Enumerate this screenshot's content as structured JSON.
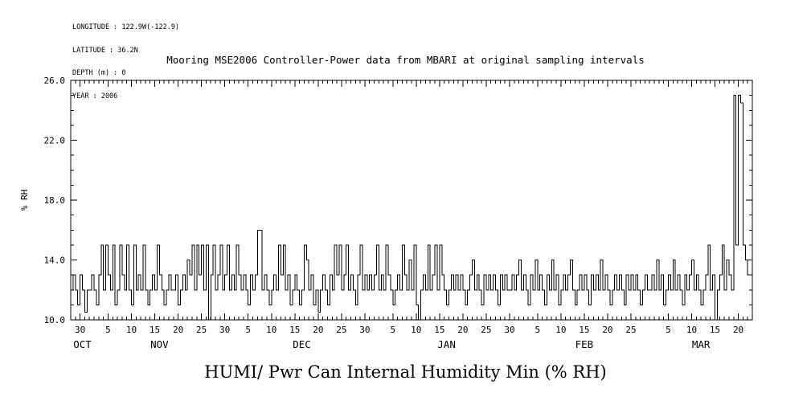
{
  "meta": {
    "lines": [
      "LONGITUDE : 122.9W(-122.9)",
      "LATITUDE : 36.2N",
      "DEPTH (m) : 0",
      "YEAR : 2006"
    ]
  },
  "chart_data": {
    "type": "line",
    "line_style": "step",
    "title": "Mooring MSE2006 Controller-Power data from MBARI at original sampling intervals",
    "bottom_label": "HUMI/ Pwr Can Internal Humidity Min (% RH)",
    "ylabel": "% RH",
    "ylim": [
      10.0,
      26.0
    ],
    "y_major_ticks": [
      10.0,
      14.0,
      18.0,
      22.0,
      26.0
    ],
    "y_tick_labels": [
      "10.0",
      "14.0",
      "18.0",
      "22.0",
      "26.0"
    ],
    "y_minor_step": 1.0,
    "grid": false,
    "x_axis": {
      "end_day": 146,
      "minor_tick_every_days": 1,
      "major_ticks": [
        {
          "day": 2,
          "label": "30"
        },
        {
          "day": 8,
          "label": "5"
        },
        {
          "day": 13,
          "label": "10"
        },
        {
          "day": 18,
          "label": "15"
        },
        {
          "day": 23,
          "label": "20"
        },
        {
          "day": 28,
          "label": "25"
        },
        {
          "day": 33,
          "label": "30"
        },
        {
          "day": 38,
          "label": "5"
        },
        {
          "day": 43,
          "label": "10"
        },
        {
          "day": 48,
          "label": "15"
        },
        {
          "day": 53,
          "label": "20"
        },
        {
          "day": 58,
          "label": "25"
        },
        {
          "day": 63,
          "label": "30"
        },
        {
          "day": 69,
          "label": "5"
        },
        {
          "day": 74,
          "label": "10"
        },
        {
          "day": 79,
          "label": "15"
        },
        {
          "day": 84,
          "label": "20"
        },
        {
          "day": 89,
          "label": "25"
        },
        {
          "day": 94,
          "label": "30"
        },
        {
          "day": 100,
          "label": "5"
        },
        {
          "day": 105,
          "label": "10"
        },
        {
          "day": 110,
          "label": "15"
        },
        {
          "day": 115,
          "label": "20"
        },
        {
          "day": 120,
          "label": "25"
        },
        {
          "day": 128,
          "label": "5"
        },
        {
          "day": 133,
          "label": "10"
        },
        {
          "day": 138,
          "label": "15"
        },
        {
          "day": 143,
          "label": "20"
        }
      ],
      "month_labels": [
        {
          "day": 2.5,
          "label": "OCT"
        },
        {
          "day": 19,
          "label": "NOV"
        },
        {
          "day": 49.5,
          "label": "DEC"
        },
        {
          "day": 80.5,
          "label": "JAN"
        },
        {
          "day": 110,
          "label": "FEB"
        },
        {
          "day": 135,
          "label": "MAR"
        }
      ]
    },
    "samples_per_day": 2,
    "values": [
      12,
      13,
      12,
      11,
      13,
      12,
      10.5,
      12,
      12,
      13,
      12,
      11,
      13,
      15,
      12,
      15,
      13,
      12,
      15,
      11,
      12,
      15,
      13,
      12,
      15,
      12,
      11,
      15,
      12,
      13,
      12,
      15,
      12,
      11,
      12,
      13,
      12,
      15,
      13,
      12,
      11,
      12,
      13,
      12,
      12,
      13,
      11,
      12,
      13,
      12,
      14,
      13,
      15,
      12,
      15,
      13,
      15,
      12,
      15,
      10,
      13,
      15,
      12,
      13,
      15,
      12,
      13,
      15,
      12,
      13,
      12,
      15,
      13,
      12,
      13,
      12,
      11,
      13,
      12,
      13,
      16,
      16,
      12,
      13,
      12,
      11,
      12,
      13,
      12,
      15,
      13,
      15,
      12,
      13,
      11,
      12,
      13,
      12,
      11,
      12,
      15,
      14,
      12,
      13,
      11,
      12,
      10.5,
      12,
      13,
      12,
      11,
      13,
      12,
      15,
      13,
      15,
      12,
      13,
      15,
      12,
      13,
      12,
      11,
      13,
      15,
      12,
      13,
      12,
      13,
      12,
      13,
      15,
      12,
      13,
      12,
      15,
      13,
      12,
      11,
      12,
      13,
      12,
      15,
      13,
      12,
      14,
      12,
      15,
      11,
      10,
      12,
      13,
      12,
      15,
      12,
      13,
      15,
      12,
      15,
      13,
      12,
      11,
      12,
      13,
      12,
      13,
      12,
      13,
      12,
      11,
      12,
      13,
      14,
      12,
      13,
      12,
      11,
      13,
      12,
      13,
      12,
      13,
      12,
      11,
      13,
      12,
      13,
      12,
      12,
      13,
      12,
      13,
      14,
      12,
      13,
      12,
      11,
      13,
      12,
      14,
      12,
      13,
      12,
      11,
      13,
      12,
      14,
      12,
      13,
      11,
      12,
      13,
      12,
      13,
      14,
      12,
      11,
      12,
      13,
      12,
      13,
      12,
      11,
      13,
      12,
      13,
      12,
      14,
      12,
      13,
      12,
      11,
      12,
      13,
      12,
      13,
      12,
      11,
      13,
      12,
      13,
      12,
      13,
      12,
      11,
      12,
      13,
      12,
      12,
      13,
      12,
      14,
      12,
      13,
      11,
      12,
      13,
      12,
      14,
      12,
      13,
      12,
      11,
      13,
      12,
      13,
      14,
      12,
      13,
      12,
      11,
      12,
      13,
      15,
      12,
      13,
      10,
      12,
      13,
      15,
      12,
      14,
      13,
      12,
      25,
      15,
      25,
      24.5,
      15,
      14,
      13,
      13
    ]
  }
}
